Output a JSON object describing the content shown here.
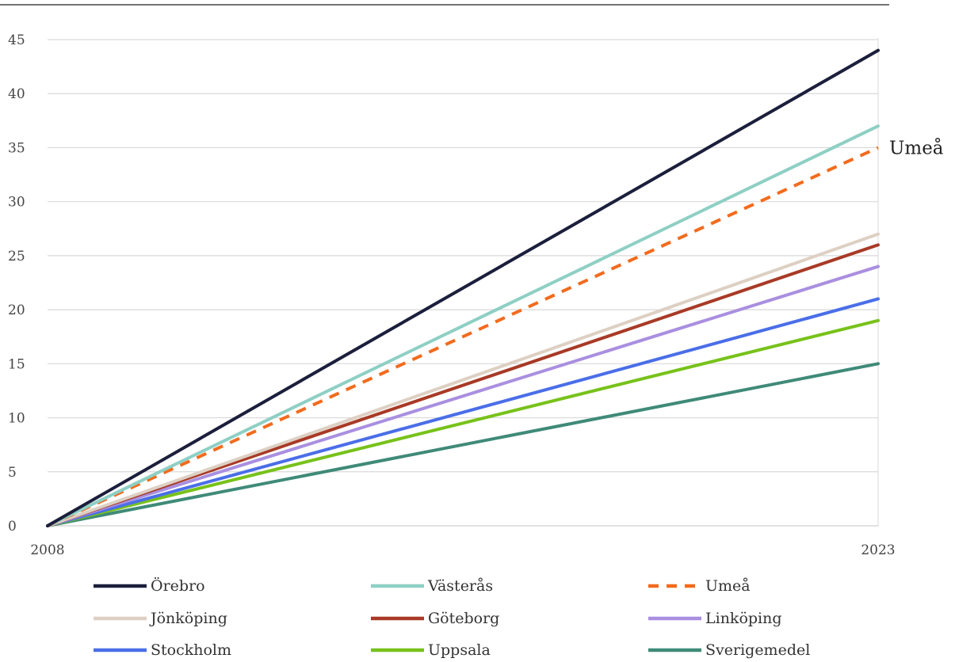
{
  "chart_data": {
    "type": "line",
    "x": [
      "2008",
      "2023"
    ],
    "ylim": [
      0,
      45
    ],
    "yticks": [
      "0",
      "5",
      "10",
      "15",
      "20",
      "25",
      "30",
      "35",
      "40",
      "45"
    ],
    "xticks": [
      "2008",
      "2023"
    ],
    "grid": true,
    "legend_position": "bottom",
    "annotation": {
      "text": "Umeå",
      "series": "Umeå"
    },
    "series": [
      {
        "name": "Örebro",
        "values": [
          0,
          44
        ],
        "color": "#1b1f3b",
        "dashed": false
      },
      {
        "name": "Västerås",
        "values": [
          0,
          37
        ],
        "color": "#8ecfc4",
        "dashed": false
      },
      {
        "name": "Umeå",
        "values": [
          0,
          35
        ],
        "color": "#f26b1d",
        "dashed": true
      },
      {
        "name": "Jönköping",
        "values": [
          0,
          27
        ],
        "color": "#ddd0c3",
        "dashed": false
      },
      {
        "name": "Göteborg",
        "values": [
          0,
          26
        ],
        "color": "#a83a26",
        "dashed": false
      },
      {
        "name": "Linköping",
        "values": [
          0,
          24
        ],
        "color": "#a98fe0",
        "dashed": false
      },
      {
        "name": "Stockholm",
        "values": [
          0,
          21
        ],
        "color": "#4a6ee8",
        "dashed": false
      },
      {
        "name": "Uppsala",
        "values": [
          0,
          19
        ],
        "color": "#77c21a",
        "dashed": false
      },
      {
        "name": "Sverigemedel",
        "values": [
          0,
          15
        ],
        "color": "#3f8a78",
        "dashed": false
      }
    ]
  }
}
